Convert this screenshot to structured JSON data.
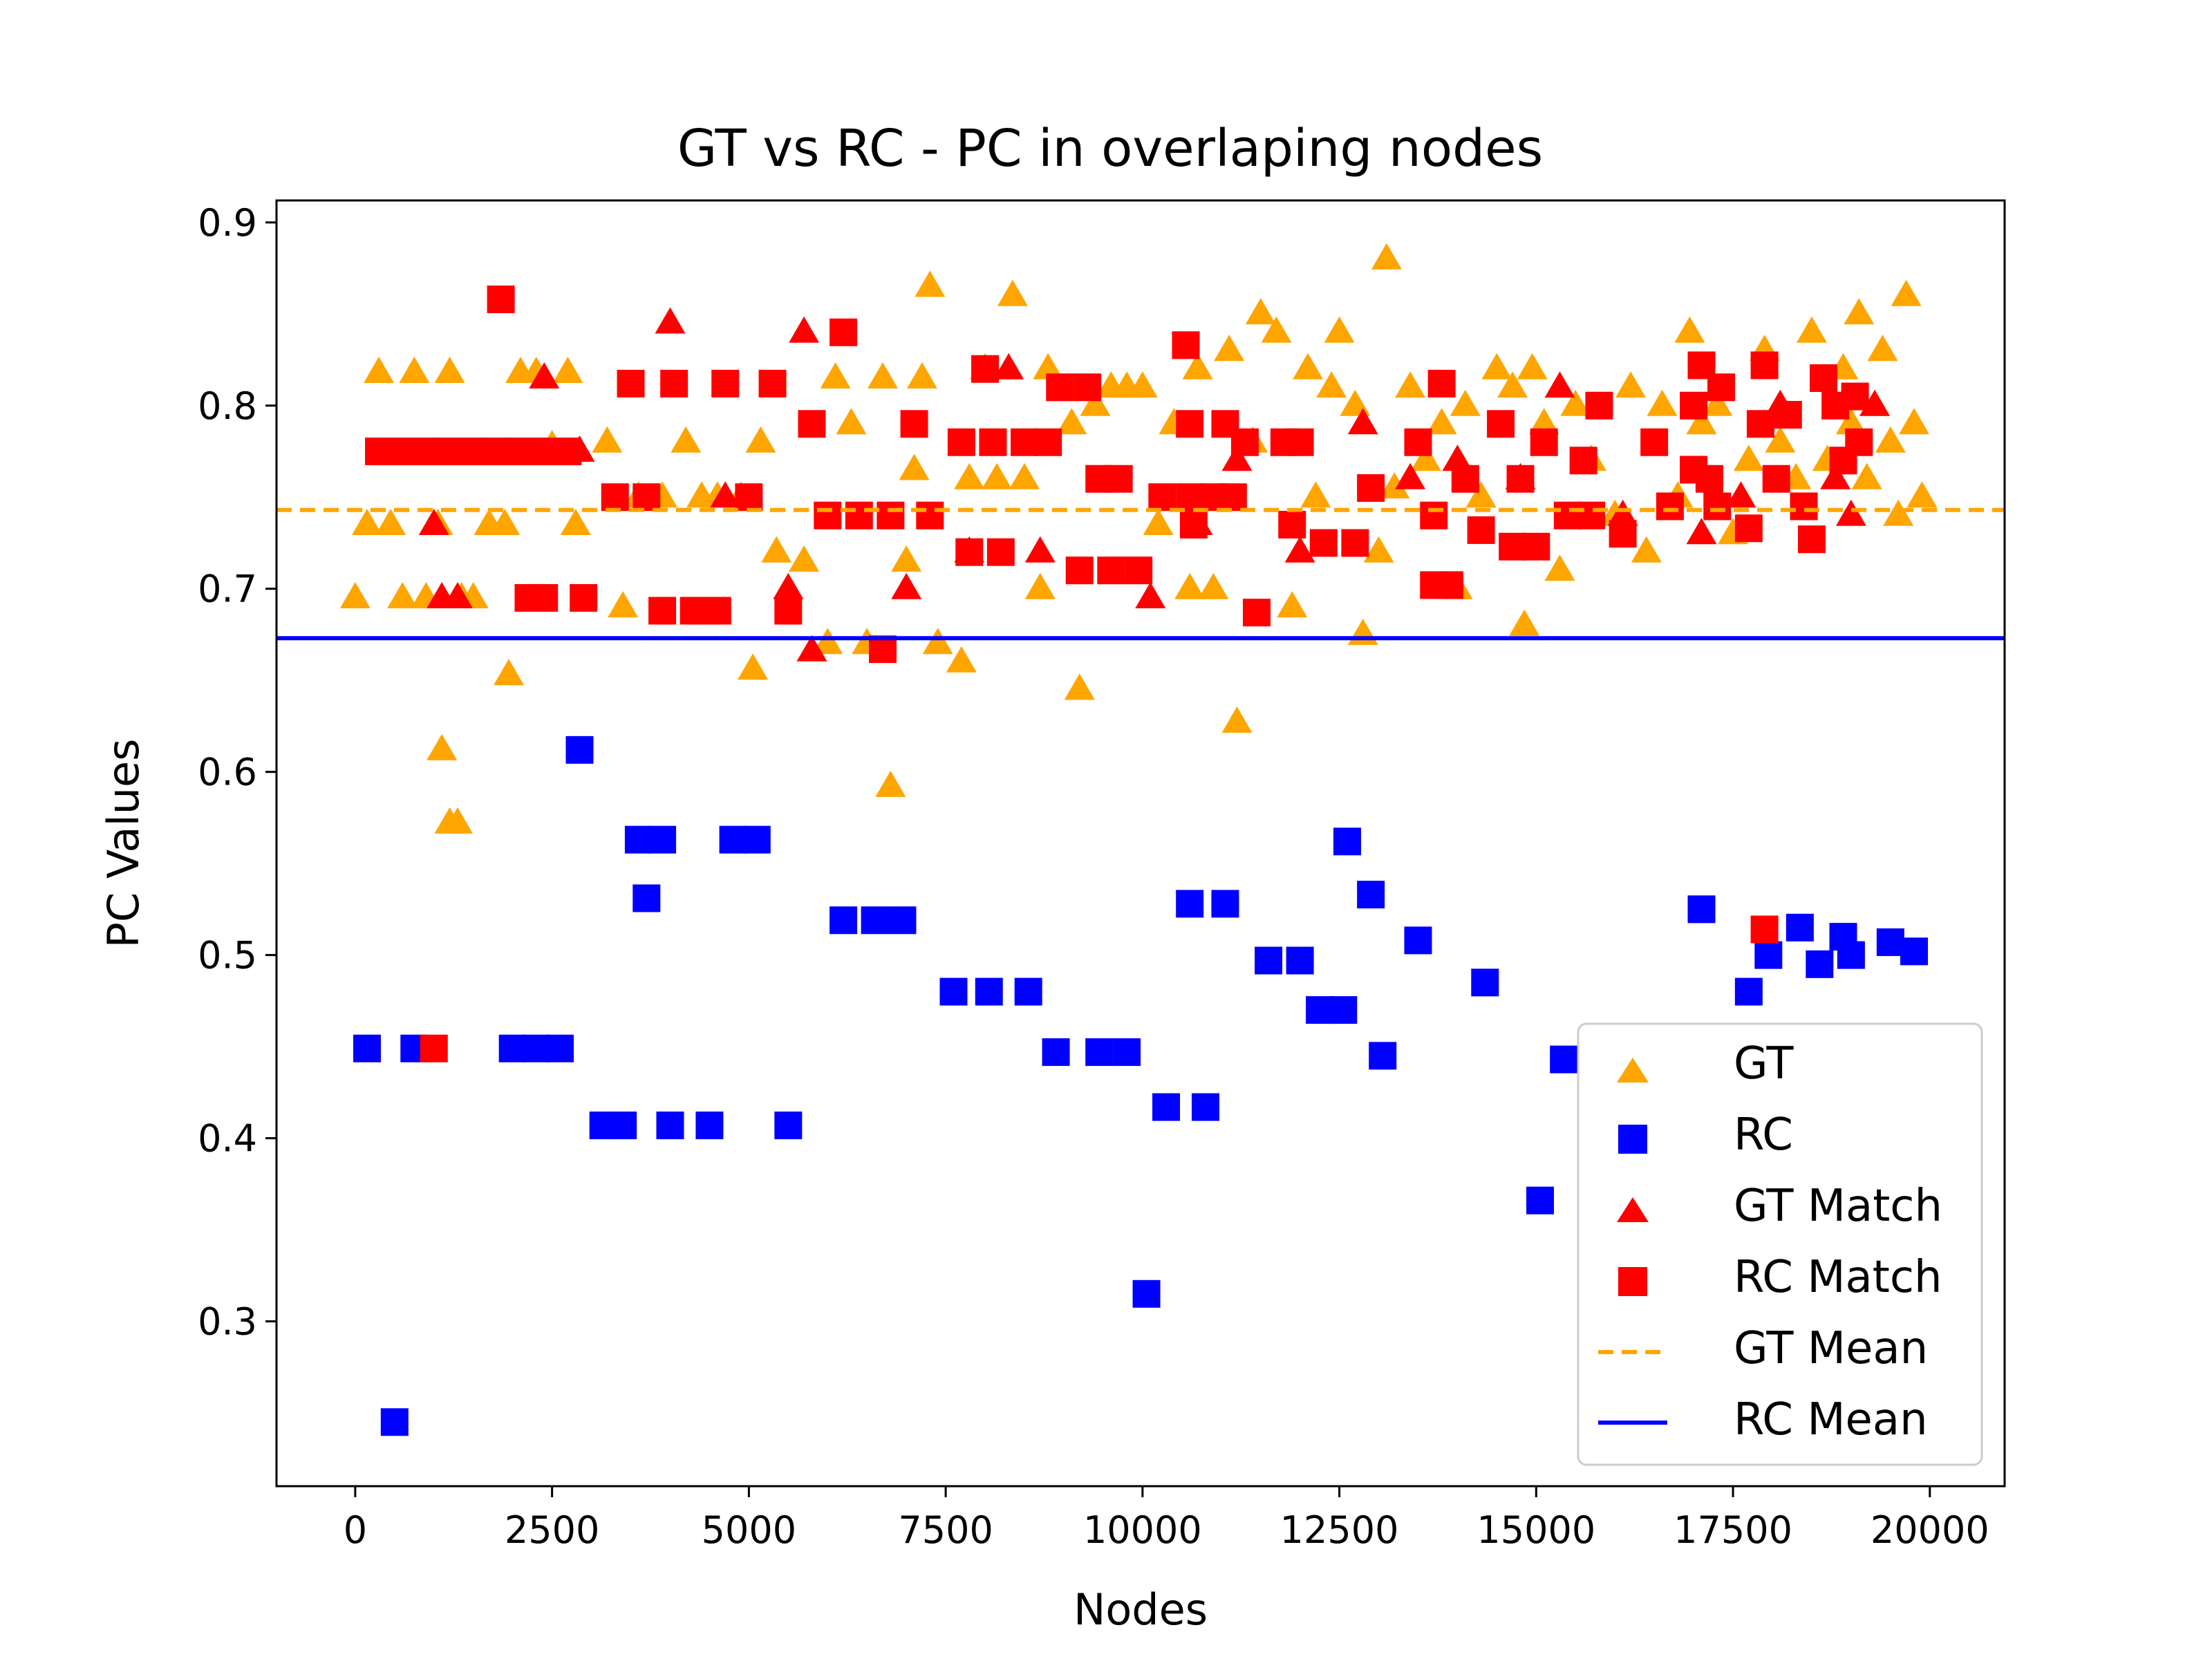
{
  "chart_data": {
    "type": "scatter",
    "title": "GT vs RC - PC in overlaping nodes",
    "xlabel": "Nodes",
    "ylabel": "PC Values",
    "xlim": [
      -1000,
      20950
    ],
    "ylim": [
      0.21,
      0.912
    ],
    "xticks": [
      0,
      2500,
      5000,
      7500,
      10000,
      12500,
      15000,
      17500,
      20000
    ],
    "yticks": [
      0.3,
      0.4,
      0.5,
      0.6,
      0.7,
      0.8,
      0.9
    ],
    "grid": false,
    "legend_position": "lower-right",
    "colors": {
      "gt": "#FFA500",
      "rc": "#0000FF",
      "match": "#FF0000"
    },
    "legend": [
      "GT",
      "RC",
      "GT Match",
      "RC Match",
      "GT Mean",
      "RC Mean"
    ],
    "means": {
      "gt": 0.743,
      "rc": 0.673
    },
    "series": [
      {
        "name": "GT",
        "marker": "triangle",
        "color": "#FFA500",
        "points": [
          [
            0,
            0.695
          ],
          [
            150,
            0.735
          ],
          [
            300,
            0.818
          ],
          [
            450,
            0.735
          ],
          [
            600,
            0.695
          ],
          [
            750,
            0.818
          ],
          [
            900,
            0.695
          ],
          [
            1050,
            0.735
          ],
          [
            1200,
            0.818
          ],
          [
            1350,
            0.695
          ],
          [
            1500,
            0.695
          ],
          [
            1700,
            0.735
          ],
          [
            1900,
            0.735
          ],
          [
            2100,
            0.818
          ],
          [
            2300,
            0.818
          ],
          [
            2500,
            0.778
          ],
          [
            2700,
            0.818
          ],
          [
            2800,
            0.735
          ],
          [
            1100,
            0.612
          ],
          [
            1200,
            0.572
          ],
          [
            1300,
            0.572
          ],
          [
            1950,
            0.653
          ],
          [
            3200,
            0.78
          ],
          [
            3400,
            0.69
          ],
          [
            3600,
            0.75
          ],
          [
            3900,
            0.75
          ],
          [
            4200,
            0.78
          ],
          [
            4400,
            0.75
          ],
          [
            4600,
            0.75
          ],
          [
            4900,
            0.75
          ],
          [
            5150,
            0.78
          ],
          [
            5350,
            0.72
          ],
          [
            5050,
            0.656
          ],
          [
            5700,
            0.715
          ],
          [
            6000,
            0.67
          ],
          [
            6100,
            0.815
          ],
          [
            6300,
            0.79
          ],
          [
            6500,
            0.67
          ],
          [
            6700,
            0.815
          ],
          [
            6800,
            0.592
          ],
          [
            7000,
            0.715
          ],
          [
            7100,
            0.765
          ],
          [
            7200,
            0.815
          ],
          [
            7300,
            0.865
          ],
          [
            7400,
            0.67
          ],
          [
            7700,
            0.66
          ],
          [
            7800,
            0.76
          ],
          [
            8000,
            0.82
          ],
          [
            8150,
            0.76
          ],
          [
            8350,
            0.86
          ],
          [
            8500,
            0.76
          ],
          [
            8700,
            0.7
          ],
          [
            8800,
            0.82
          ],
          [
            9100,
            0.79
          ],
          [
            9200,
            0.645
          ],
          [
            9400,
            0.8
          ],
          [
            9600,
            0.81
          ],
          [
            9800,
            0.81
          ],
          [
            10000,
            0.81
          ],
          [
            10200,
            0.735
          ],
          [
            10400,
            0.79
          ],
          [
            10600,
            0.7
          ],
          [
            10700,
            0.82
          ],
          [
            10900,
            0.7
          ],
          [
            11100,
            0.83
          ],
          [
            11200,
            0.627
          ],
          [
            11400,
            0.78
          ],
          [
            11500,
            0.85
          ],
          [
            11700,
            0.84
          ],
          [
            11900,
            0.69
          ],
          [
            12100,
            0.82
          ],
          [
            12200,
            0.75
          ],
          [
            12400,
            0.81
          ],
          [
            12500,
            0.84
          ],
          [
            12700,
            0.8
          ],
          [
            12800,
            0.675
          ],
          [
            13000,
            0.72
          ],
          [
            13100,
            0.88
          ],
          [
            13200,
            0.755
          ],
          [
            13400,
            0.81
          ],
          [
            13600,
            0.77
          ],
          [
            13800,
            0.79
          ],
          [
            14000,
            0.7
          ],
          [
            14100,
            0.8
          ],
          [
            14300,
            0.75
          ],
          [
            14500,
            0.82
          ],
          [
            14700,
            0.81
          ],
          [
            14850,
            0.68
          ],
          [
            14950,
            0.82
          ],
          [
            15100,
            0.79
          ],
          [
            15300,
            0.71
          ],
          [
            15500,
            0.8
          ],
          [
            15700,
            0.77
          ],
          [
            16000,
            0.74
          ],
          [
            16200,
            0.81
          ],
          [
            16400,
            0.72
          ],
          [
            16600,
            0.8
          ],
          [
            16800,
            0.75
          ],
          [
            16950,
            0.84
          ],
          [
            17100,
            0.79
          ],
          [
            17300,
            0.8
          ],
          [
            17500,
            0.73
          ],
          [
            17700,
            0.77
          ],
          [
            17900,
            0.83
          ],
          [
            18100,
            0.78
          ],
          [
            18300,
            0.76
          ],
          [
            18500,
            0.84
          ],
          [
            18700,
            0.77
          ],
          [
            18900,
            0.82
          ],
          [
            19000,
            0.79
          ],
          [
            19100,
            0.85
          ],
          [
            19200,
            0.76
          ],
          [
            19300,
            0.8
          ],
          [
            19400,
            0.83
          ],
          [
            19500,
            0.78
          ],
          [
            19600,
            0.74
          ],
          [
            19700,
            0.86
          ],
          [
            19800,
            0.79
          ],
          [
            19900,
            0.75
          ]
        ]
      },
      {
        "name": "RC",
        "marker": "square",
        "color": "#0000FF",
        "points": [
          [
            150,
            0.449
          ],
          [
            500,
            0.245
          ],
          [
            750,
            0.449
          ],
          [
            2000,
            0.449
          ],
          [
            2300,
            0.449
          ],
          [
            2600,
            0.449
          ],
          [
            2850,
            0.612
          ],
          [
            3150,
            0.407
          ],
          [
            3400,
            0.407
          ],
          [
            3600,
            0.563
          ],
          [
            3700,
            0.531
          ],
          [
            3900,
            0.563
          ],
          [
            4000,
            0.407
          ],
          [
            4500,
            0.407
          ],
          [
            4800,
            0.563
          ],
          [
            5100,
            0.563
          ],
          [
            5500,
            0.407
          ],
          [
            6200,
            0.519
          ],
          [
            6600,
            0.519
          ],
          [
            6950,
            0.519
          ],
          [
            7600,
            0.48
          ],
          [
            8050,
            0.48
          ],
          [
            8550,
            0.48
          ],
          [
            8900,
            0.447
          ],
          [
            9450,
            0.447
          ],
          [
            9800,
            0.447
          ],
          [
            10050,
            0.315
          ],
          [
            10300,
            0.417
          ],
          [
            10600,
            0.528
          ],
          [
            10800,
            0.417
          ],
          [
            11050,
            0.528
          ],
          [
            11600,
            0.497
          ],
          [
            12000,
            0.497
          ],
          [
            12250,
            0.47
          ],
          [
            12550,
            0.47
          ],
          [
            12600,
            0.562
          ],
          [
            12900,
            0.533
          ],
          [
            13050,
            0.445
          ],
          [
            13500,
            0.508
          ],
          [
            14350,
            0.485
          ],
          [
            15050,
            0.366
          ],
          [
            15350,
            0.443
          ],
          [
            17100,
            0.525
          ],
          [
            17700,
            0.48
          ],
          [
            17950,
            0.5
          ],
          [
            18350,
            0.515
          ],
          [
            18600,
            0.495
          ],
          [
            18900,
            0.51
          ],
          [
            19000,
            0.5
          ],
          [
            19500,
            0.507
          ],
          [
            19800,
            0.502
          ]
        ]
      },
      {
        "name": "GT Match",
        "marker": "triangle",
        "color": "#FF0000",
        "points": [
          [
            1000,
            0.735
          ],
          [
            1100,
            0.695
          ],
          [
            1300,
            0.695
          ],
          [
            2400,
            0.815
          ],
          [
            2850,
            0.775
          ],
          [
            4000,
            0.845
          ],
          [
            4700,
            0.75
          ],
          [
            5500,
            0.7
          ],
          [
            5700,
            0.84
          ],
          [
            5800,
            0.666
          ],
          [
            7000,
            0.7
          ],
          [
            7800,
            0.72
          ],
          [
            8300,
            0.82
          ],
          [
            8700,
            0.72
          ],
          [
            10100,
            0.695
          ],
          [
            10700,
            0.735
          ],
          [
            11200,
            0.77
          ],
          [
            12000,
            0.72
          ],
          [
            12800,
            0.79
          ],
          [
            13400,
            0.76
          ],
          [
            14000,
            0.77
          ],
          [
            14800,
            0.76
          ],
          [
            15300,
            0.81
          ],
          [
            16100,
            0.74
          ],
          [
            17100,
            0.73
          ],
          [
            17600,
            0.75
          ],
          [
            18100,
            0.8
          ],
          [
            18800,
            0.76
          ],
          [
            19000,
            0.74
          ],
          [
            19300,
            0.8
          ]
        ]
      },
      {
        "name": "RC Match",
        "marker": "square",
        "color": "#FF0000",
        "points": [
          [
            300,
            0.775
          ],
          [
            600,
            0.775
          ],
          [
            900,
            0.775
          ],
          [
            1200,
            0.775
          ],
          [
            1500,
            0.775
          ],
          [
            1800,
            0.775
          ],
          [
            2100,
            0.775
          ],
          [
            2400,
            0.775
          ],
          [
            2700,
            0.775
          ],
          [
            1850,
            0.858
          ],
          [
            2200,
            0.695
          ],
          [
            2400,
            0.695
          ],
          [
            2900,
            0.695
          ],
          [
            3300,
            0.75
          ],
          [
            3500,
            0.812
          ],
          [
            3700,
            0.75
          ],
          [
            3900,
            0.688
          ],
          [
            4050,
            0.812
          ],
          [
            4300,
            0.688
          ],
          [
            4600,
            0.688
          ],
          [
            4700,
            0.812
          ],
          [
            5000,
            0.75
          ],
          [
            5300,
            0.812
          ],
          [
            5500,
            0.688
          ],
          [
            5800,
            0.79
          ],
          [
            6200,
            0.84
          ],
          [
            6000,
            0.74
          ],
          [
            6400,
            0.74
          ],
          [
            6800,
            0.74
          ],
          [
            6700,
            0.667
          ],
          [
            7100,
            0.79
          ],
          [
            7300,
            0.74
          ],
          [
            7700,
            0.78
          ],
          [
            8000,
            0.82
          ],
          [
            8100,
            0.78
          ],
          [
            8500,
            0.78
          ],
          [
            8800,
            0.78
          ],
          [
            7800,
            0.72
          ],
          [
            8200,
            0.72
          ],
          [
            8950,
            0.81
          ],
          [
            9300,
            0.81
          ],
          [
            9450,
            0.76
          ],
          [
            9700,
            0.76
          ],
          [
            9200,
            0.71
          ],
          [
            9600,
            0.71
          ],
          [
            9950,
            0.71
          ],
          [
            10250,
            0.75
          ],
          [
            10550,
            0.833
          ],
          [
            10600,
            0.75
          ],
          [
            10900,
            0.75
          ],
          [
            11150,
            0.75
          ],
          [
            10650,
            0.735
          ],
          [
            10600,
            0.79
          ],
          [
            11050,
            0.79
          ],
          [
            11300,
            0.78
          ],
          [
            11450,
            0.687
          ],
          [
            11800,
            0.78
          ],
          [
            11900,
            0.735
          ],
          [
            12000,
            0.78
          ],
          [
            12300,
            0.725
          ],
          [
            12700,
            0.725
          ],
          [
            12900,
            0.755
          ],
          [
            13500,
            0.78
          ],
          [
            13700,
            0.74
          ],
          [
            13700,
            0.702
          ],
          [
            13900,
            0.702
          ],
          [
            13800,
            0.812
          ],
          [
            14100,
            0.76
          ],
          [
            14300,
            0.732
          ],
          [
            14550,
            0.79
          ],
          [
            14700,
            0.723
          ],
          [
            14800,
            0.76
          ],
          [
            15000,
            0.723
          ],
          [
            15100,
            0.78
          ],
          [
            15400,
            0.74
          ],
          [
            15600,
            0.77
          ],
          [
            15800,
            0.8
          ],
          [
            15700,
            0.74
          ],
          [
            16100,
            0.73
          ],
          [
            16500,
            0.78
          ],
          [
            16700,
            0.745
          ],
          [
            17000,
            0.8
          ],
          [
            17000,
            0.765
          ],
          [
            17100,
            0.822
          ],
          [
            17200,
            0.76
          ],
          [
            17300,
            0.745
          ],
          [
            17350,
            0.81
          ],
          [
            17700,
            0.733
          ],
          [
            17850,
            0.79
          ],
          [
            17900,
            0.822
          ],
          [
            18050,
            0.76
          ],
          [
            18200,
            0.795
          ],
          [
            18400,
            0.745
          ],
          [
            18500,
            0.727
          ],
          [
            18650,
            0.815
          ],
          [
            18800,
            0.8
          ],
          [
            18900,
            0.77
          ],
          [
            19050,
            0.805
          ],
          [
            19100,
            0.78
          ],
          [
            17900,
            0.514
          ],
          [
            1000,
            0.449
          ]
        ]
      }
    ]
  }
}
